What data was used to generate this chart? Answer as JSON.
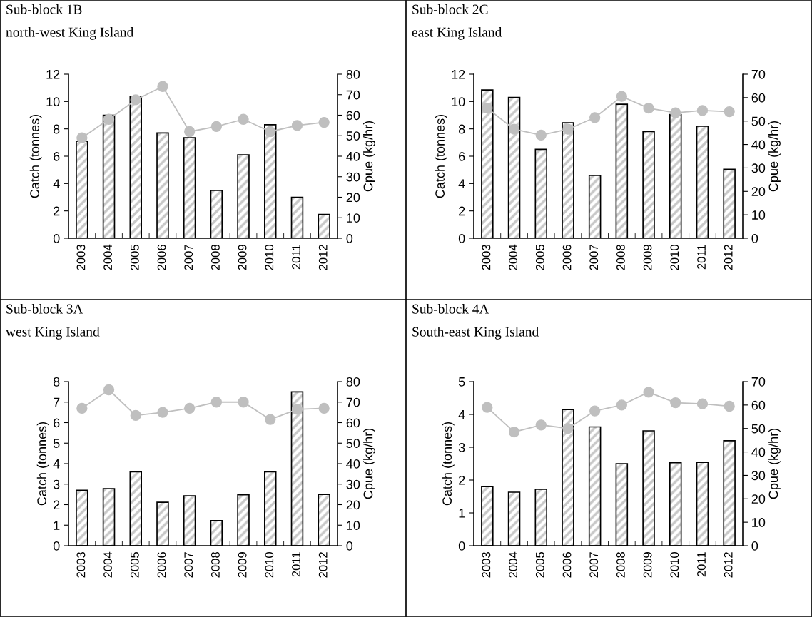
{
  "chart_data": [
    {
      "type": "bar",
      "title": "Sub-block 1B",
      "subtitle": "north-west King Island",
      "categories": [
        "2003",
        "2004",
        "2005",
        "2006",
        "2007",
        "2008",
        "2009",
        "2010",
        "2011",
        "2012"
      ],
      "series": [
        {
          "color": "#000000",
          "values": [
            7.1,
            9.0,
            10.35,
            7.7,
            7.35,
            3.5,
            6.1,
            8.3,
            3.0,
            1.75
          ]
        },
        {
          "type": "line",
          "axis": "y2",
          "color": "#bfbfbf",
          "values": [
            49,
            58,
            67.5,
            74,
            52,
            54.5,
            58,
            52,
            55,
            56.5
          ]
        }
      ],
      "ylabel": "Catch (tonnes)",
      "y2label": "Cpue (kg/hr)",
      "ylim": [
        0,
        12
      ],
      "yticks": [
        0,
        2,
        4,
        6,
        8,
        10,
        12
      ],
      "y2lim": [
        0,
        80
      ],
      "y2ticks": [
        0,
        10,
        20,
        30,
        40,
        50,
        60,
        70,
        80
      ],
      "grid": false,
      "legend": false,
      "marker": "circle"
    },
    {
      "type": "bar",
      "title": "Sub-block 2C",
      "subtitle": "east King Island",
      "categories": [
        "2003",
        "2004",
        "2005",
        "2006",
        "2007",
        "2008",
        "2009",
        "2010",
        "2011",
        "2012"
      ],
      "series": [
        {
          "color": "#000000",
          "values": [
            10.85,
            10.3,
            6.5,
            8.45,
            4.6,
            9.8,
            7.8,
            9.05,
            8.2,
            5.05
          ]
        },
        {
          "type": "line",
          "axis": "y2",
          "color": "#bfbfbf",
          "values": [
            55.5,
            46.5,
            44,
            46.5,
            51.5,
            60.5,
            55.5,
            53.5,
            54.5,
            54
          ]
        }
      ],
      "ylabel": "Catch (tonnes)",
      "y2label": "Cpue (kg/hr)",
      "ylim": [
        0,
        12
      ],
      "yticks": [
        0,
        2,
        4,
        6,
        8,
        10,
        12
      ],
      "y2lim": [
        0,
        70
      ],
      "y2ticks": [
        0,
        10,
        20,
        30,
        40,
        50,
        60,
        70
      ],
      "grid": false,
      "legend": false,
      "marker": "circle"
    },
    {
      "type": "bar",
      "title": "Sub-block 3A",
      "subtitle": "west King Island",
      "categories": [
        "2003",
        "2004",
        "2005",
        "2006",
        "2007",
        "2008",
        "2009",
        "2010",
        "2011",
        "2012"
      ],
      "series": [
        {
          "color": "#000000",
          "values": [
            2.7,
            2.78,
            3.6,
            2.12,
            2.43,
            1.22,
            2.48,
            3.6,
            7.5,
            2.5
          ]
        },
        {
          "type": "line",
          "axis": "y2",
          "color": "#bfbfbf",
          "values": [
            67,
            76,
            63.5,
            65,
            67,
            70,
            70,
            61.5,
            66.5,
            67
          ]
        }
      ],
      "ylabel": "Catch (tonnes)",
      "y2label": "Cpue (kg/hr)",
      "ylim": [
        0,
        8
      ],
      "yticks": [
        0,
        1,
        2,
        3,
        4,
        5,
        6,
        7,
        8
      ],
      "y2lim": [
        0,
        80
      ],
      "y2ticks": [
        0,
        10,
        20,
        30,
        40,
        50,
        60,
        70,
        80
      ],
      "grid": false,
      "legend": false,
      "marker": "circle"
    },
    {
      "type": "bar",
      "title": "Sub-block 4A",
      "subtitle": "South-east King Island",
      "categories": [
        "2003",
        "2004",
        "2005",
        "2006",
        "2007",
        "2008",
        "2009",
        "2010",
        "2011",
        "2012"
      ],
      "series": [
        {
          "color": "#000000",
          "values": [
            1.8,
            1.63,
            1.72,
            4.15,
            3.62,
            2.5,
            3.5,
            2.53,
            2.54,
            3.2
          ]
        },
        {
          "type": "line",
          "axis": "y2",
          "color": "#bfbfbf",
          "values": [
            59,
            48.5,
            51.5,
            50,
            57.5,
            60,
            65.5,
            61,
            60.5,
            59.5
          ]
        }
      ],
      "ylabel": "Catch (tonnes)",
      "y2label": "Cpue (kg/hr)",
      "ylim": [
        0,
        5
      ],
      "yticks": [
        0,
        1,
        2,
        3,
        4,
        5
      ],
      "y2lim": [
        0,
        70
      ],
      "y2ticks": [
        0,
        10,
        20,
        30,
        40,
        50,
        60,
        70
      ],
      "grid": false,
      "legend": false,
      "marker": "circle"
    }
  ]
}
